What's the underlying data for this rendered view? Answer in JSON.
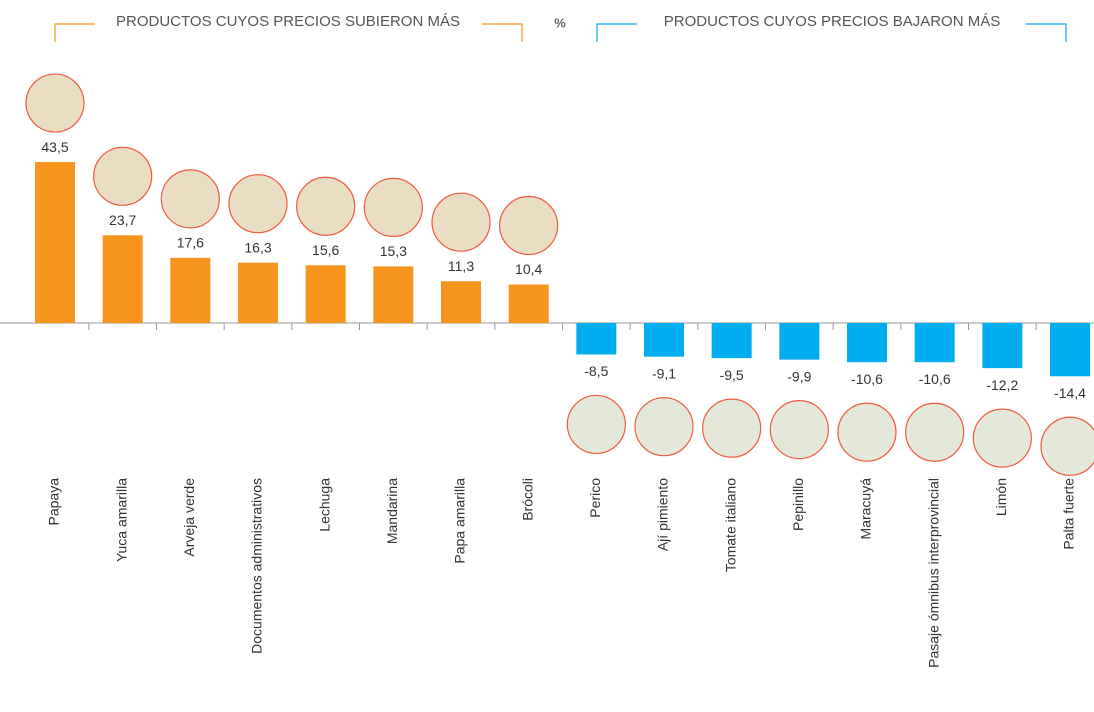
{
  "chart_data": {
    "type": "bar",
    "header_left": "PRODUCTOS CUYOS PRECIOS SUBIERON MÁS",
    "unit": "%",
    "header_right": "PRODUCTOS CUYOS PRECIOS BAJARON MÁS",
    "categories": [
      "Papaya",
      "Yuca amarilla",
      "Arveja verde",
      "Documentos administrativos",
      "Lechuga",
      "Mandarina",
      "Papa amarilla",
      "Brócoli",
      "Perico",
      "Ají pimiento",
      "Tomate italiano",
      "Pepinillo",
      "Maracuyá",
      "Pasaje ómnibus interprovincial",
      "Limón",
      "Palta fuerte"
    ],
    "values": [
      43.5,
      23.7,
      17.6,
      16.3,
      15.6,
      15.3,
      11.3,
      10.4,
      -8.5,
      -9.1,
      -9.5,
      -9.9,
      -10.6,
      -10.6,
      -12.2,
      -14.4
    ],
    "value_labels": [
      "43,5",
      "23,7",
      "17,6",
      "16,3",
      "15,6",
      "15,3",
      "11,3",
      "10,4",
      "-8,5",
      "-9,1",
      "-9,5",
      "-9,9",
      "-10,6",
      "-10,6",
      "-12,2",
      "-14,4"
    ],
    "colors": [
      "#f7941d",
      "#f7941d",
      "#f7941d",
      "#f7941d",
      "#f7941d",
      "#f7941d",
      "#f7941d",
      "#f7941d",
      "#00aeef",
      "#00aeef",
      "#00aeef",
      "#00aeef",
      "#00aeef",
      "#00aeef",
      "#00aeef",
      "#00aeef"
    ],
    "ylim": [
      -30,
      70
    ]
  }
}
